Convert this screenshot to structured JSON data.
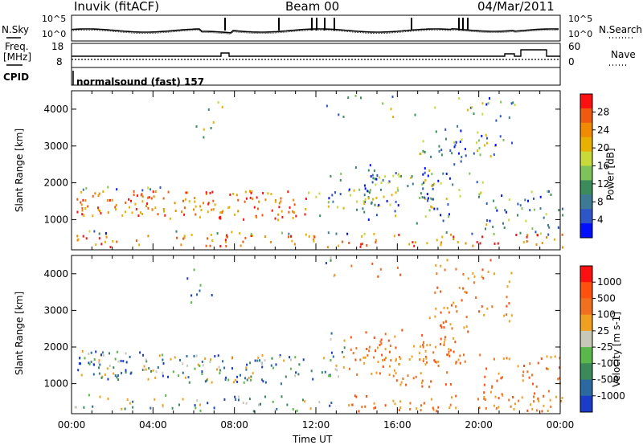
{
  "header": {
    "title": "Inuvik (fitACF)",
    "beam": "Beam 00",
    "date": "04/Mar/2011"
  },
  "strip": {
    "nsky_label": "N.Sky",
    "nsky_ticks": [
      "10^5",
      "10^0"
    ],
    "nsearch_label": "N.Search",
    "nsearch_ticks": [
      "10^5",
      "10^0"
    ],
    "freq_label_1": "Freq.",
    "freq_label_2": "[MHz]",
    "freq_ticks": [
      "18",
      "8"
    ],
    "nave_label": "Nave",
    "nave_ticks": [
      "60",
      "0"
    ],
    "cpid_label": "CPID",
    "cpid_value": "normalsound (fast) 157"
  },
  "chart_data": [
    {
      "type": "heatmap",
      "ylabel": "Slant Range [km]",
      "xlim": [
        "00:00",
        "24:00"
      ],
      "ylim": [
        180,
        4500
      ],
      "yticks": [
        1000,
        2000,
        3000,
        4000
      ],
      "colorbar": {
        "label": "Power [dB]",
        "ticks": [
          "28",
          "24",
          "20",
          "16",
          "12",
          "8",
          "4"
        ],
        "range": [
          0,
          30
        ]
      },
      "colors": [
        "#0010ff",
        "#2f56c8",
        "#3d7a95",
        "#3a8c5a",
        "#7ec25a",
        "#c8d93a",
        "#e8b000",
        "#f08a00",
        "#f05a10",
        "#ff1010"
      ]
    },
    {
      "type": "heatmap",
      "ylabel": "Slant Range [km]",
      "xlim": [
        "00:00",
        "24:00"
      ],
      "ylim": [
        180,
        4500
      ],
      "yticks": [
        1000,
        2000,
        3000,
        4000
      ],
      "colorbar": {
        "label": "Velocity [m s-1]",
        "ticks": [
          "1000",
          "500",
          "100",
          "25",
          "-25",
          "-100",
          "-500",
          "-1000"
        ]
      },
      "colors": [
        "#1a3cc8",
        "#2a6aa0",
        "#3a8a5a",
        "#5ab84a",
        "#c8c8b8",
        "#f0a020",
        "#f07020",
        "#ff5010",
        "#ff1010"
      ]
    }
  ],
  "xaxis": {
    "label": "Time UT",
    "ticks": [
      "00:00",
      "04:00",
      "08:00",
      "12:00",
      "16:00",
      "20:00",
      "00:00"
    ]
  }
}
